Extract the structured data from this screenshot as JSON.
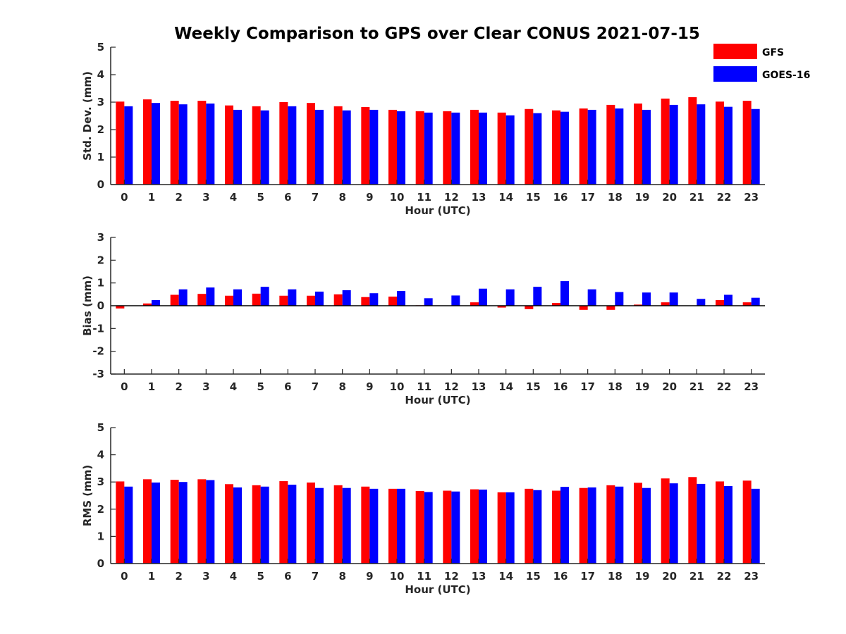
{
  "title": "Weekly Comparison to GPS over Clear CONUS 2021-07-15",
  "legend": [
    {
      "name": "GFS",
      "color": "#ff0000"
    },
    {
      "name": "GOES-16",
      "color": "#0000ff"
    }
  ],
  "chart_data": [
    {
      "type": "bar",
      "xlabel": "Hour (UTC)",
      "ylabel": "Std. Dev. (mm)",
      "ylim": [
        0,
        5
      ],
      "yticks": [
        0,
        1,
        2,
        3,
        4,
        5
      ],
      "categories": [
        "0",
        "1",
        "2",
        "3",
        "4",
        "5",
        "6",
        "7",
        "8",
        "9",
        "10",
        "11",
        "12",
        "13",
        "14",
        "15",
        "16",
        "17",
        "18",
        "19",
        "20",
        "21",
        "22",
        "23"
      ],
      "series": [
        {
          "name": "GFS",
          "color": "#ff0000",
          "values": [
            3.02,
            3.1,
            3.05,
            3.05,
            2.88,
            2.85,
            3.0,
            2.97,
            2.85,
            2.82,
            2.72,
            2.67,
            2.67,
            2.72,
            2.62,
            2.75,
            2.7,
            2.77,
            2.9,
            2.95,
            3.13,
            3.18,
            3.02,
            3.05
          ]
        },
        {
          "name": "GOES-16",
          "color": "#0000ff",
          "values": [
            2.85,
            2.97,
            2.92,
            2.95,
            2.72,
            2.7,
            2.85,
            2.72,
            2.7,
            2.72,
            2.67,
            2.62,
            2.62,
            2.62,
            2.52,
            2.6,
            2.65,
            2.72,
            2.77,
            2.72,
            2.9,
            2.92,
            2.83,
            2.75
          ]
        }
      ]
    },
    {
      "type": "bar",
      "xlabel": "Hour (UTC)",
      "ylabel": "Bias (mm)",
      "ylim": [
        -3,
        3
      ],
      "yticks": [
        -3,
        -2,
        -1,
        0,
        1,
        2,
        3
      ],
      "categories": [
        "0",
        "1",
        "2",
        "3",
        "4",
        "5",
        "6",
        "7",
        "8",
        "9",
        "10",
        "11",
        "12",
        "13",
        "14",
        "15",
        "16",
        "17",
        "18",
        "19",
        "20",
        "21",
        "22",
        "23"
      ],
      "series": [
        {
          "name": "GFS",
          "color": "#ff0000",
          "values": [
            -0.12,
            0.1,
            0.48,
            0.52,
            0.44,
            0.53,
            0.44,
            0.44,
            0.5,
            0.38,
            0.4,
            0.02,
            0.01,
            0.15,
            -0.08,
            -0.15,
            0.12,
            -0.18,
            -0.18,
            0.05,
            0.15,
            0.0,
            0.25,
            0.15
          ]
        },
        {
          "name": "GOES-16",
          "color": "#0000ff",
          "values": [
            0.0,
            0.25,
            0.72,
            0.8,
            0.72,
            0.83,
            0.72,
            0.62,
            0.68,
            0.55,
            0.65,
            0.33,
            0.45,
            0.75,
            0.72,
            0.83,
            1.08,
            0.72,
            0.6,
            0.58,
            0.58,
            0.3,
            0.48,
            0.35
          ]
        }
      ]
    },
    {
      "type": "bar",
      "xlabel": "Hour (UTC)",
      "ylabel": "RMS (mm)",
      "ylim": [
        0,
        5
      ],
      "yticks": [
        0,
        1,
        2,
        3,
        4,
        5
      ],
      "categories": [
        "0",
        "1",
        "2",
        "3",
        "4",
        "5",
        "6",
        "7",
        "8",
        "9",
        "10",
        "11",
        "12",
        "13",
        "14",
        "15",
        "16",
        "17",
        "18",
        "19",
        "20",
        "21",
        "22",
        "23"
      ],
      "series": [
        {
          "name": "GFS",
          "color": "#ff0000",
          "values": [
            3.02,
            3.1,
            3.08,
            3.1,
            2.92,
            2.88,
            3.03,
            2.98,
            2.88,
            2.83,
            2.75,
            2.67,
            2.68,
            2.73,
            2.62,
            2.75,
            2.68,
            2.78,
            2.88,
            2.97,
            3.13,
            3.18,
            3.02,
            3.05
          ]
        },
        {
          "name": "GOES-16",
          "color": "#0000ff",
          "values": [
            2.83,
            2.98,
            3.0,
            3.07,
            2.8,
            2.83,
            2.9,
            2.78,
            2.78,
            2.75,
            2.75,
            2.63,
            2.65,
            2.72,
            2.62,
            2.7,
            2.82,
            2.8,
            2.83,
            2.78,
            2.95,
            2.93,
            2.85,
            2.75
          ]
        }
      ]
    }
  ]
}
